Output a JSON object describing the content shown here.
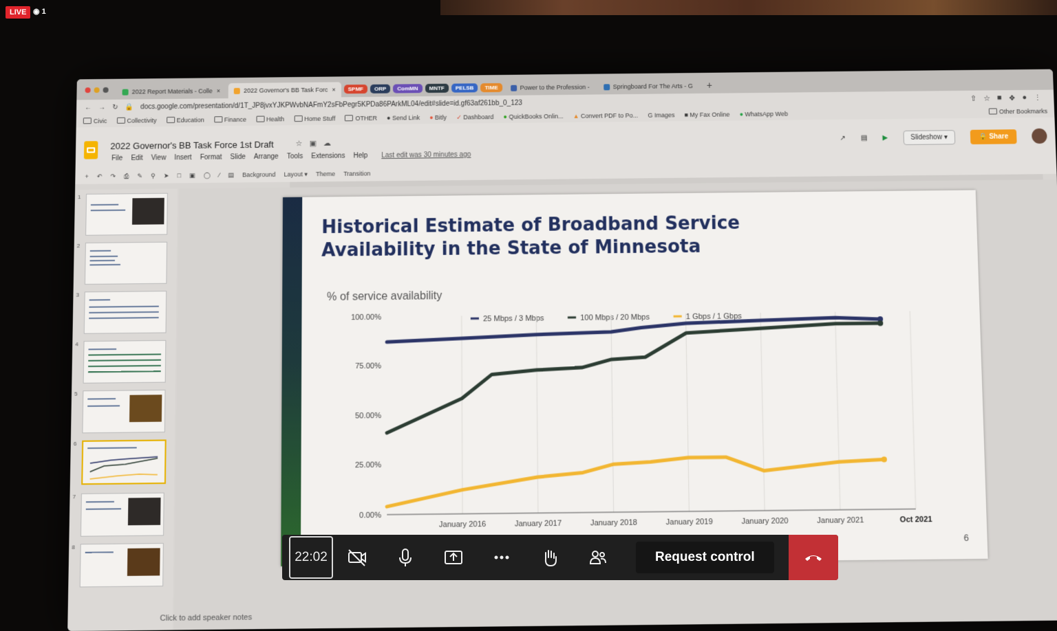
{
  "stream": {
    "live_label": "LIVE",
    "viewer_count": "1"
  },
  "browser": {
    "tabs": [
      {
        "label": "2022 Report Materials - Colle",
        "active": false
      },
      {
        "label": "2022 Governor's BB Task Forc",
        "active": true
      }
    ],
    "pills": [
      {
        "label": "SPMF",
        "color": "#d6452f"
      },
      {
        "label": "ORP",
        "color": "#2b3d5c"
      },
      {
        "label": "ComMN",
        "color": "#6b4fb5"
      },
      {
        "label": "MNTF",
        "color": "#2d3b43"
      },
      {
        "label": "PELSB",
        "color": "#3566c4"
      },
      {
        "label": "TIME",
        "color": "#e58a2c"
      }
    ],
    "right_tabs": [
      {
        "label": "Power to the Profession -"
      },
      {
        "label": "Springboard For The Arts - G"
      }
    ],
    "url": "docs.google.com/presentation/d/1T_JP8jvxYJKPWvbNAFmY2sFbPegr5KPDa86PArkML04/edit#slide=id.gf63af261bb_0_123",
    "bookmarks": [
      "Civic",
      "Collectivity",
      "Education",
      "Finance",
      "Health",
      "Home Stuff",
      "OTHER",
      "Send Link",
      "Bitly",
      "Dashboard",
      "QuickBooks Onlin...",
      "Convert PDF to Po...",
      "Images",
      "My Fax Online",
      "WhatsApp Web"
    ],
    "other_bookmarks": "Other Bookmarks"
  },
  "slides_app": {
    "doc_title": "2022 Governor's BB Task Force 1st Draft",
    "menu": [
      "File",
      "Edit",
      "View",
      "Insert",
      "Format",
      "Slide",
      "Arrange",
      "Tools",
      "Extensions",
      "Help"
    ],
    "last_edit": "Last edit was 30 minutes ago",
    "slideshow_label": "Slideshow",
    "share_label": "Share",
    "toolbar": {
      "background": "Background",
      "layout": "Layout",
      "theme": "Theme",
      "transition": "Transition"
    },
    "speaker_notes_placeholder": "Click to add speaker notes",
    "thumbnails": [
      {
        "num": "1"
      },
      {
        "num": "2"
      },
      {
        "num": "3"
      },
      {
        "num": "4"
      },
      {
        "num": "5"
      },
      {
        "num": "6"
      },
      {
        "num": "7"
      },
      {
        "num": "8"
      }
    ],
    "selected_slide": "6"
  },
  "slide": {
    "title_line1": "Historical Estimate of Broadband Service",
    "title_line2": "Availability in the State of Minnesota",
    "page_number": "6"
  },
  "chart_data": {
    "type": "line",
    "title": "% of service availability",
    "categories": [
      "",
      "January 2016",
      "January 2017",
      "January 2018",
      "January 2019",
      "January 2020",
      "January 2021",
      "Oct 2021"
    ],
    "y_ticks": [
      "0.00%",
      "25.00%",
      "50.00%",
      "75.00%",
      "100.00%"
    ],
    "ylim": [
      0,
      100
    ],
    "legend_position": "top",
    "grid": true,
    "series": [
      {
        "name": "25 Mbps / 3 Mbps",
        "color": "#2b3467",
        "x": [
          0,
          1,
          2,
          3,
          3.4,
          4,
          5,
          6,
          6.6
        ],
        "values": [
          87,
          88.5,
          90,
          91,
          93,
          95,
          96,
          97,
          96
        ]
      },
      {
        "name": "100 Mbps / 20 Mbps",
        "color": "#2c3d33",
        "x": [
          0,
          1,
          1.4,
          2,
          2.6,
          3,
          3.45,
          4,
          5,
          6,
          6.6
        ],
        "values": [
          41,
          58,
          70,
          72,
          73,
          77,
          78,
          90,
          92,
          94,
          94
        ]
      },
      {
        "name": "1 Gbps / 1 Gbps",
        "color": "#f2b632",
        "x": [
          0,
          1,
          2,
          2.6,
          3,
          3.5,
          4,
          4.5,
          5,
          6,
          6.6
        ],
        "values": [
          4,
          12,
          18,
          20,
          24,
          25,
          27,
          27,
          20,
          24,
          25
        ]
      }
    ]
  },
  "call_controls": {
    "timer": "22:02",
    "request_control_label": "Request control"
  }
}
